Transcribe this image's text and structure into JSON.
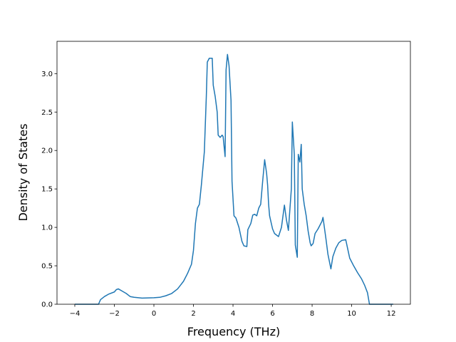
{
  "chart_data": {
    "type": "line",
    "xlabel": "Frequency (THz)",
    "ylabel": "Density of States",
    "color": "#1f77b4",
    "x": [
      -4.0,
      -3.0,
      -2.8,
      -2.7,
      -2.5,
      -2.3,
      -2.0,
      -1.9,
      -1.8,
      -1.6,
      -1.4,
      -1.2,
      -1.0,
      -0.6,
      0,
      0.3,
      0.6,
      0.9,
      1.2,
      1.5,
      1.7,
      1.9,
      2.0,
      2.1,
      2.2,
      2.3,
      2.4,
      2.55,
      2.65,
      2.7,
      2.8,
      2.95,
      3.0,
      3.1,
      3.2,
      3.25,
      3.35,
      3.45,
      3.5,
      3.6,
      3.65,
      3.72,
      3.8,
      3.9,
      3.95,
      4.05,
      4.15,
      4.3,
      4.45,
      4.55,
      4.7,
      4.75,
      4.9,
      5.0,
      5.1,
      5.2,
      5.3,
      5.4,
      5.5,
      5.6,
      5.7,
      5.75,
      5.8,
      5.85,
      6.0,
      6.1,
      6.2,
      6.3,
      6.45,
      6.6,
      6.7,
      6.8,
      6.95,
      7.0,
      7.1,
      7.15,
      7.25,
      7.3,
      7.38,
      7.45,
      7.5,
      7.6,
      7.7,
      7.8,
      7.9,
      7.95,
      8.05,
      8.15,
      8.3,
      8.4,
      8.5,
      8.55,
      8.7,
      8.8,
      8.95,
      9.05,
      9.2,
      9.35,
      9.5,
      9.7,
      9.8,
      9.9,
      10.1,
      10.3,
      10.5,
      10.65,
      10.8,
      10.9,
      11.5,
      12.1
    ],
    "values": [
      0,
      0,
      0,
      0.06,
      0.1,
      0.13,
      0.16,
      0.19,
      0.2,
      0.17,
      0.14,
      0.1,
      0.09,
      0.08,
      0.085,
      0.09,
      0.11,
      0.14,
      0.2,
      0.3,
      0.4,
      0.52,
      0.7,
      1.05,
      1.25,
      1.3,
      1.55,
      1.98,
      2.7,
      3.15,
      3.2,
      3.2,
      2.85,
      2.7,
      2.5,
      2.2,
      2.17,
      2.2,
      2.18,
      1.92,
      3.05,
      3.25,
      3.1,
      2.65,
      1.6,
      1.15,
      1.12,
      1.0,
      0.82,
      0.76,
      0.75,
      0.97,
      1.05,
      1.16,
      1.17,
      1.15,
      1.25,
      1.3,
      1.6,
      1.88,
      1.7,
      1.55,
      1.3,
      1.15,
      0.98,
      0.92,
      0.9,
      0.88,
      1.0,
      1.29,
      1.1,
      0.96,
      1.5,
      2.37,
      1.95,
      0.77,
      0.61,
      1.95,
      1.85,
      2.08,
      1.5,
      1.3,
      1.15,
      0.95,
      0.8,
      0.76,
      0.79,
      0.92,
      0.98,
      1.03,
      1.08,
      1.13,
      0.85,
      0.65,
      0.46,
      0.62,
      0.73,
      0.8,
      0.83,
      0.84,
      0.72,
      0.6,
      0.5,
      0.41,
      0.33,
      0.25,
      0.15,
      0,
      0,
      0
    ],
    "xlim": [
      -4.9,
      12.97
    ],
    "xticks": [
      {
        "value": -4,
        "label": "−4"
      },
      {
        "value": -2,
        "label": "−2"
      },
      0,
      2,
      4,
      6,
      8,
      10,
      12
    ],
    "ylim": [
      0,
      3.42
    ],
    "yticks": [
      {
        "value": 0,
        "label": "0.0"
      },
      0.5,
      {
        "value": 1,
        "label": "1.0"
      },
      1.5,
      {
        "value": 2,
        "label": "2.0"
      },
      2.5,
      {
        "value": 3,
        "label": "3.0"
      }
    ]
  }
}
